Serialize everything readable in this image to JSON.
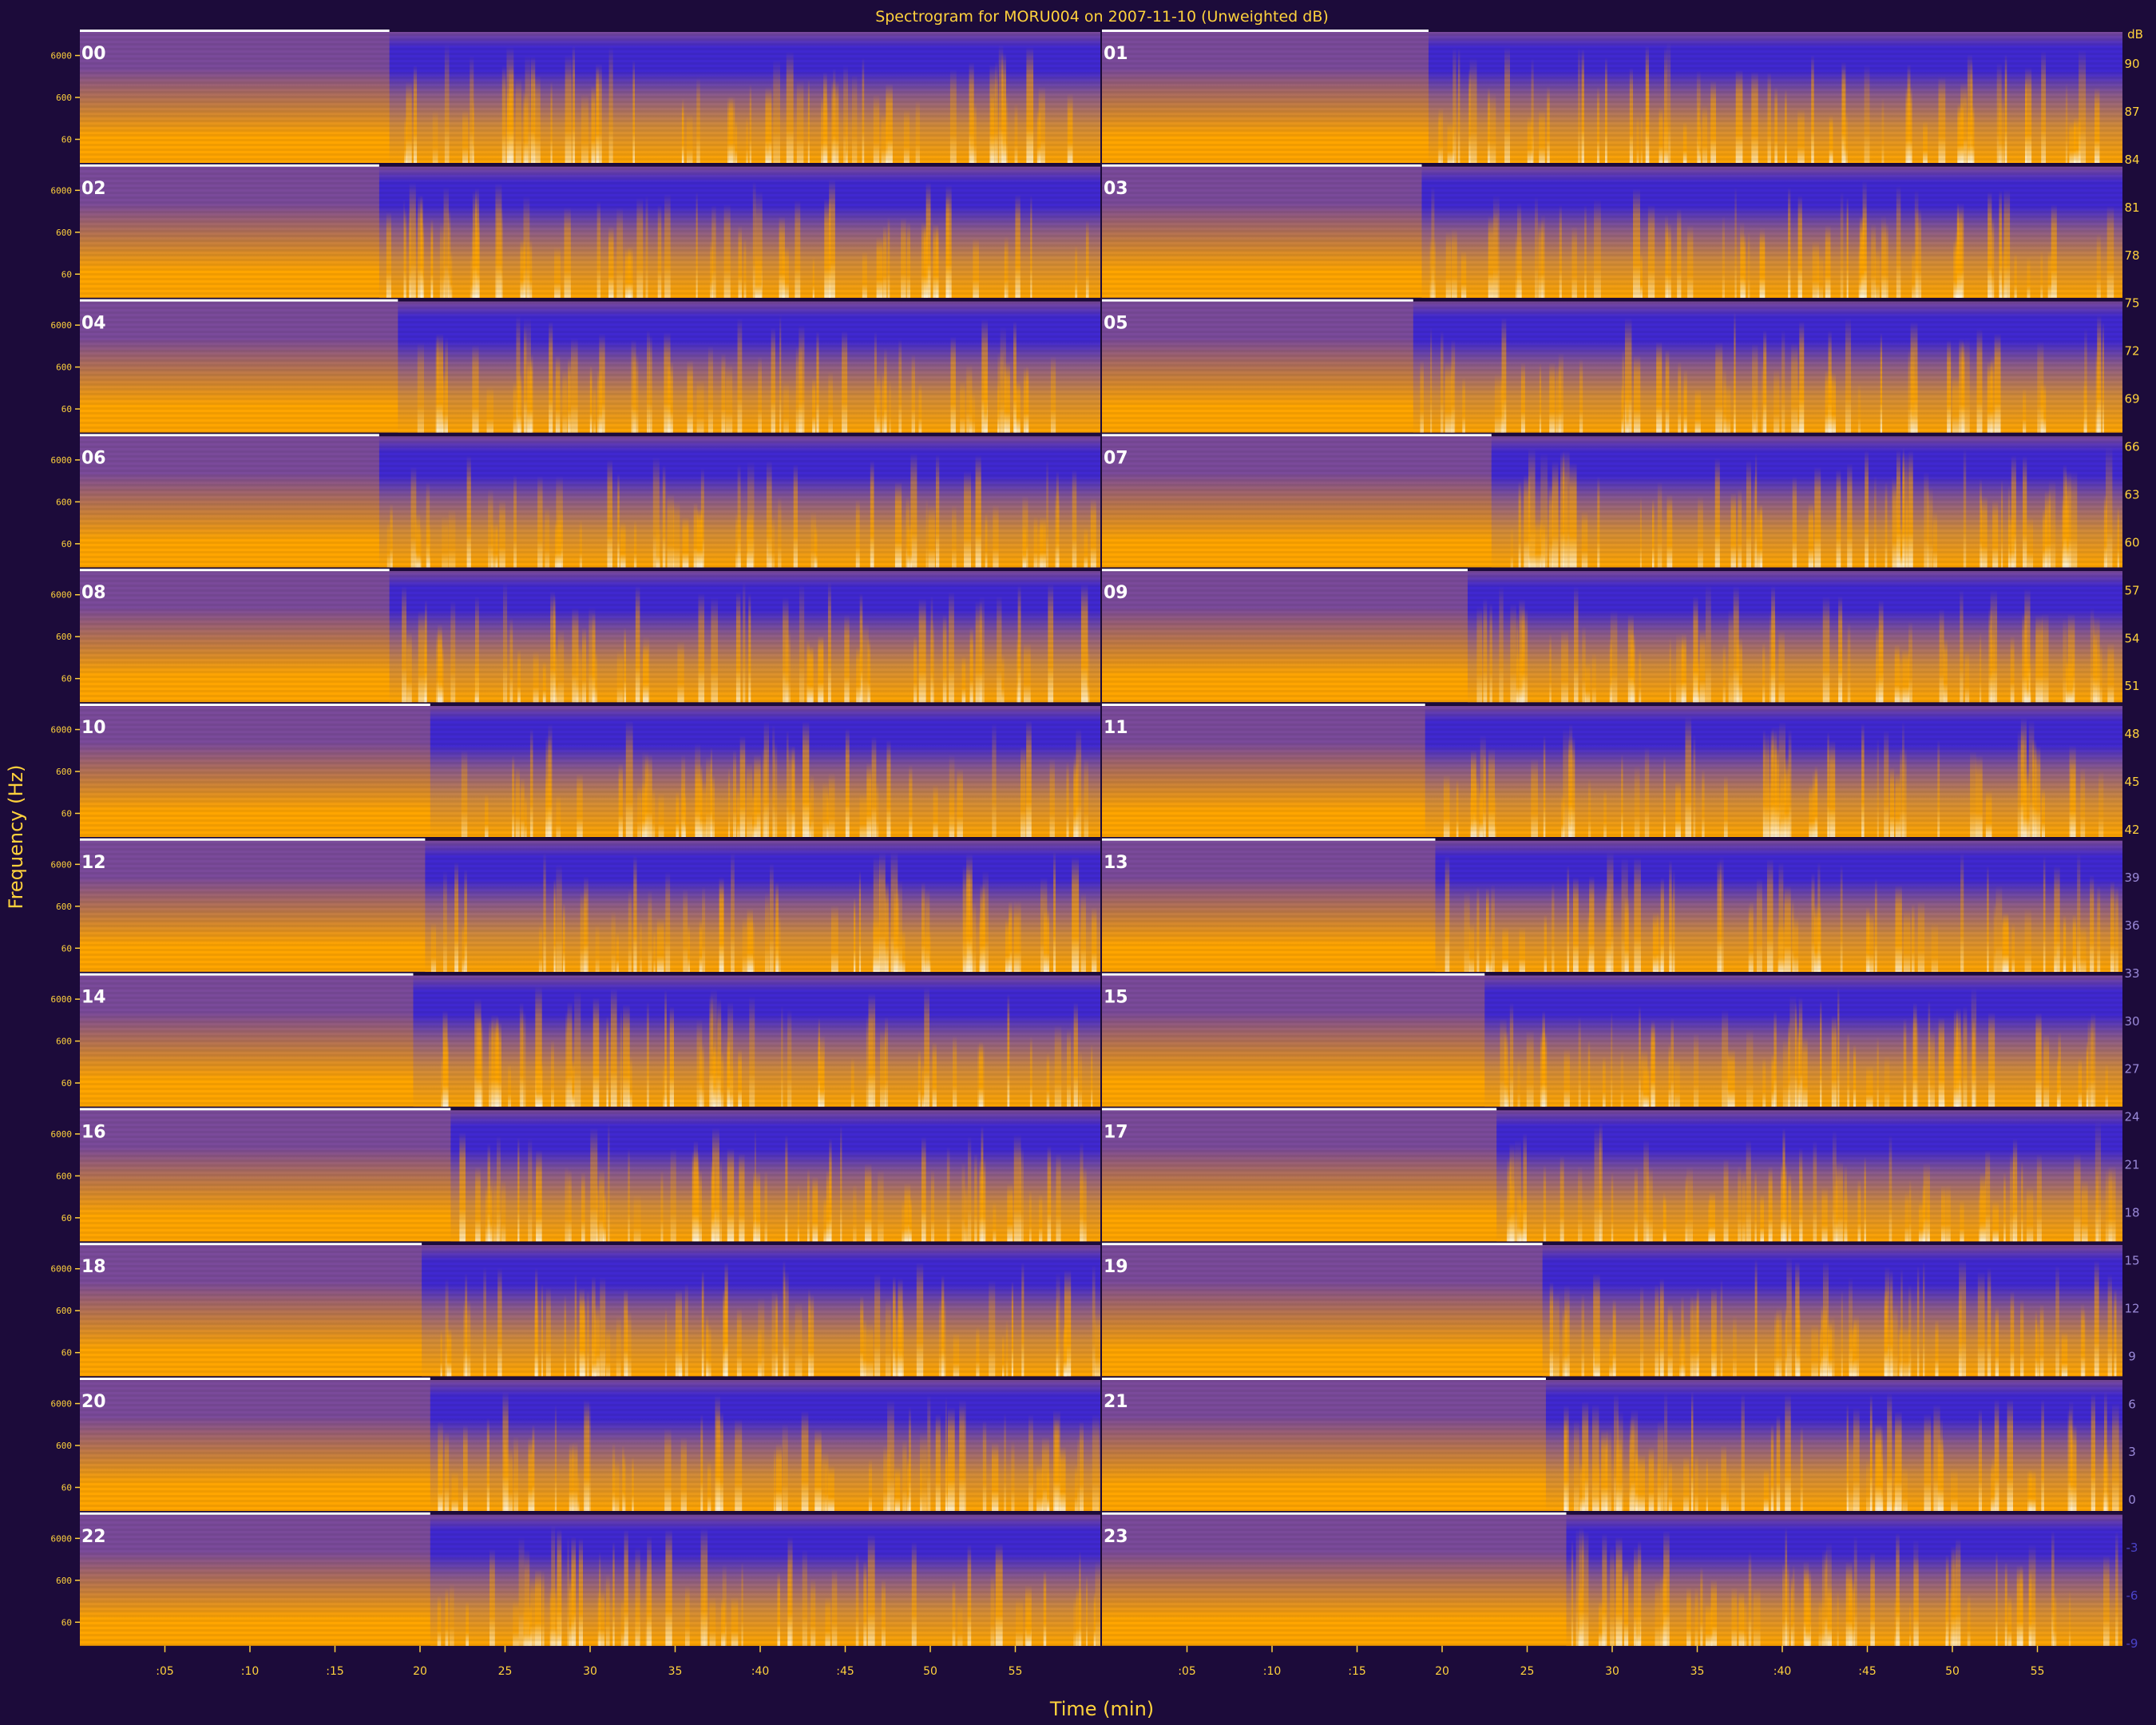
{
  "colors": {
    "background": "#1c0b3a",
    "label": "#ffd23c",
    "quiet": "#4028d0",
    "mid": "#7a4a9a",
    "loud": "#ffa500",
    "peak": "#fff8e0",
    "start_marker": "#ffffff"
  },
  "chart_data": {
    "type": "heatmap",
    "title": "Spectrogram for MORU004 on 2007-11-10 (Unweighted dB)",
    "xlabel": "Time (min)",
    "ylabel": "Frequency (Hz)",
    "x_ticks": [
      ":05",
      ":10",
      ":15",
      "20",
      "25",
      "30",
      "35",
      ":40",
      ":45",
      "50",
      "55"
    ],
    "x_tick_minutes": [
      5,
      10,
      15,
      20,
      25,
      30,
      35,
      40,
      45,
      50,
      55
    ],
    "xlim": [
      0,
      60
    ],
    "y_scale": "log",
    "y_ticks": [
      "6000",
      "600",
      "60"
    ],
    "colorbar": {
      "label": "dB",
      "ticks": [
        90,
        87,
        84,
        81,
        78,
        75,
        72,
        69,
        66,
        63,
        60,
        57,
        54,
        51,
        48,
        45,
        42,
        39,
        36,
        33,
        30,
        27,
        24,
        21,
        18,
        15,
        12,
        9,
        6,
        3,
        0,
        -3,
        -6,
        -9
      ],
      "range": [
        -9,
        90
      ]
    },
    "grid": false,
    "layout": "12 rows x 2 columns of hourly panels",
    "panels": [
      {
        "hour": "00",
        "recording_start_min": 18.2
      },
      {
        "hour": "01",
        "recording_start_min": 19.2
      },
      {
        "hour": "02",
        "recording_start_min": 17.6
      },
      {
        "hour": "03",
        "recording_start_min": 18.8
      },
      {
        "hour": "04",
        "recording_start_min": 18.7
      },
      {
        "hour": "05",
        "recording_start_min": 18.3
      },
      {
        "hour": "06",
        "recording_start_min": 17.6
      },
      {
        "hour": "07",
        "recording_start_min": 22.9
      },
      {
        "hour": "08",
        "recording_start_min": 18.2
      },
      {
        "hour": "09",
        "recording_start_min": 21.5
      },
      {
        "hour": "10",
        "recording_start_min": 20.6
      },
      {
        "hour": "11",
        "recording_start_min": 19.0
      },
      {
        "hour": "12",
        "recording_start_min": 20.3
      },
      {
        "hour": "13",
        "recording_start_min": 19.6
      },
      {
        "hour": "14",
        "recording_start_min": 19.6
      },
      {
        "hour": "15",
        "recording_start_min": 22.5
      },
      {
        "hour": "16",
        "recording_start_min": 21.8
      },
      {
        "hour": "17",
        "recording_start_min": 23.2
      },
      {
        "hour": "18",
        "recording_start_min": 20.1
      },
      {
        "hour": "19",
        "recording_start_min": 25.9
      },
      {
        "hour": "20",
        "recording_start_min": 20.6
      },
      {
        "hour": "21",
        "recording_start_min": 26.1
      },
      {
        "hour": "22",
        "recording_start_min": 20.6
      },
      {
        "hour": "23",
        "recording_start_min": 27.3
      }
    ]
  }
}
